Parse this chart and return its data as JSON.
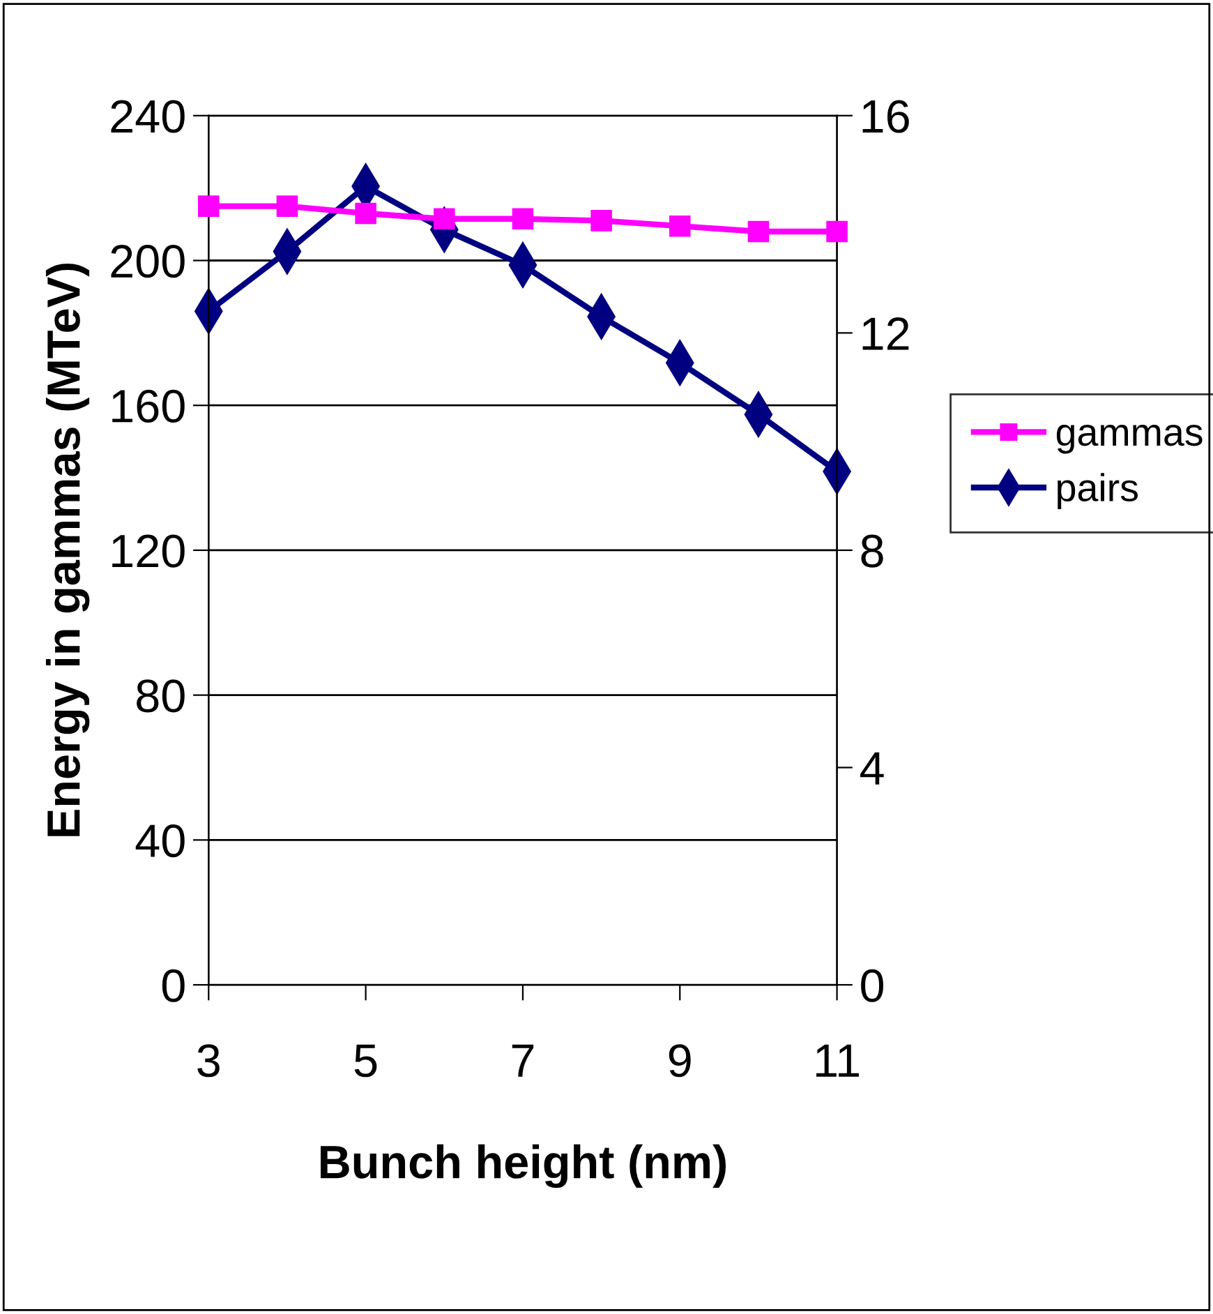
{
  "chart_data": {
    "type": "line",
    "xlabel": "Bunch height (nm)",
    "ylabel": "Energy in gammas (MTeV)",
    "x": [
      3,
      4,
      5,
      6,
      7,
      8,
      9,
      10,
      11
    ],
    "series": [
      {
        "name": "gammas",
        "color": "#ff00ff",
        "marker": "square",
        "values": [
          215,
          215,
          213,
          211.5,
          211.5,
          211,
          209.5,
          208,
          208
        ]
      },
      {
        "name": "pairs",
        "color": "#000080",
        "marker": "diamond",
        "axis": "y2",
        "values": [
          12.4,
          13.5,
          14.7,
          13.9,
          13.25,
          12.3,
          11.45,
          10.5,
          9.45
        ]
      }
    ],
    "xlim": [
      3,
      11
    ],
    "xticks": [
      3,
      5,
      7,
      9,
      11
    ],
    "ylim": [
      0,
      240
    ],
    "yticks": [
      0,
      40,
      80,
      120,
      160,
      200,
      240
    ],
    "y2lim": [
      0,
      16
    ],
    "y2ticks": [
      0,
      4,
      8,
      12,
      16
    ],
    "grid": "y",
    "legend": "right",
    "line_style": "solid"
  }
}
